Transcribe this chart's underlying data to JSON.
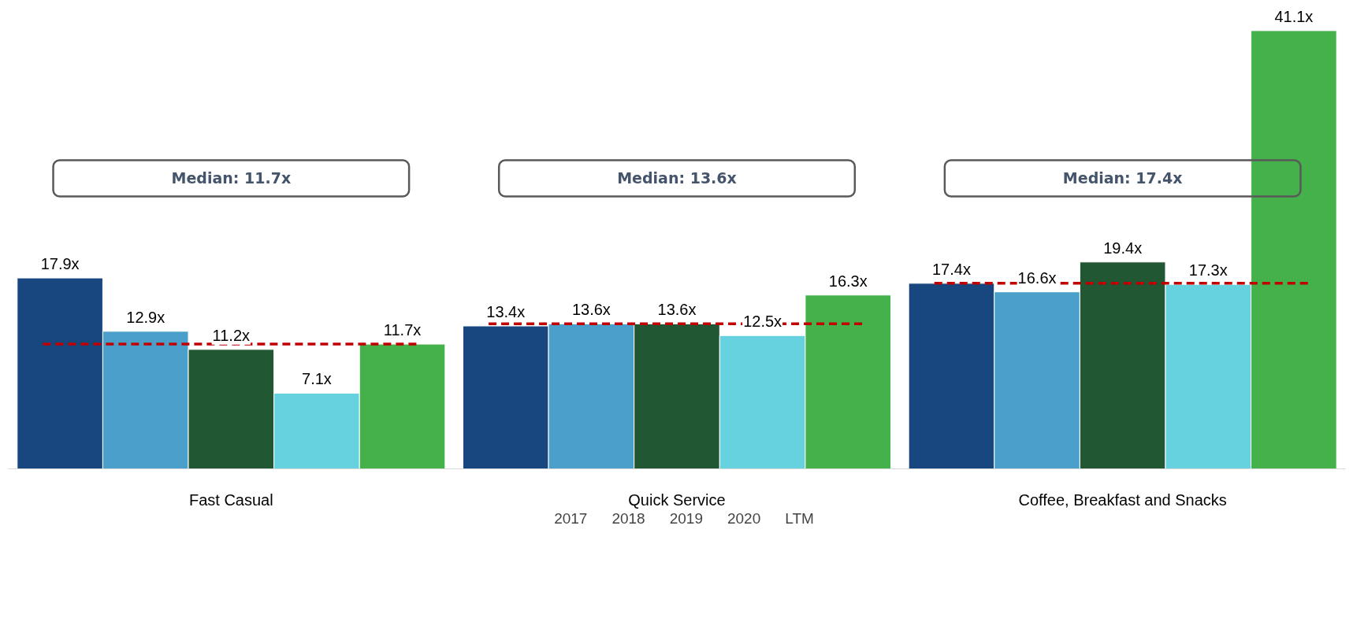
{
  "chart_data": {
    "type": "bar",
    "categories": [
      "Fast Casual",
      "Quick Service",
      "Coffee, Breakfast and Snacks"
    ],
    "series": [
      {
        "name": "2017",
        "color": "#17477e",
        "values": [
          17.9,
          13.4,
          17.4
        ],
        "value_labels": [
          "17.9x",
          "13.4x",
          "17.4x"
        ]
      },
      {
        "name": "2018",
        "color": "#4ba0cb",
        "values": [
          12.9,
          13.6,
          16.6
        ],
        "value_labels": [
          "12.9x",
          "13.6x",
          "16.6x"
        ]
      },
      {
        "name": "2019",
        "color": "#215732",
        "values": [
          11.2,
          13.6,
          19.4
        ],
        "value_labels": [
          "11.2x",
          "13.6x",
          "19.4x"
        ]
      },
      {
        "name": "2020",
        "color": "#67d2df",
        "values": [
          7.1,
          12.5,
          17.3
        ],
        "value_labels": [
          "7.1x",
          "12.5x",
          "17.3x"
        ]
      },
      {
        "name": "LTM",
        "color": "#44b14b",
        "values": [
          11.7,
          16.3,
          41.1
        ],
        "value_labels": [
          "11.7x",
          "16.3x",
          "41.1x"
        ]
      }
    ],
    "ref_lines": [
      {
        "axis": "y",
        "value": 11.7,
        "color": "#c00000",
        "line_style": "dashed"
      },
      {
        "axis": "y",
        "value": 13.6,
        "color": "#c00000",
        "line_style": "dashed"
      },
      {
        "axis": "y",
        "value": 17.4,
        "color": "#c00000",
        "line_style": "dashed"
      }
    ],
    "annotations": [
      "Median: 11.7x",
      "Median: 13.6x",
      "Median: 17.4x"
    ],
    "legend": "bottom",
    "grid": false
  }
}
